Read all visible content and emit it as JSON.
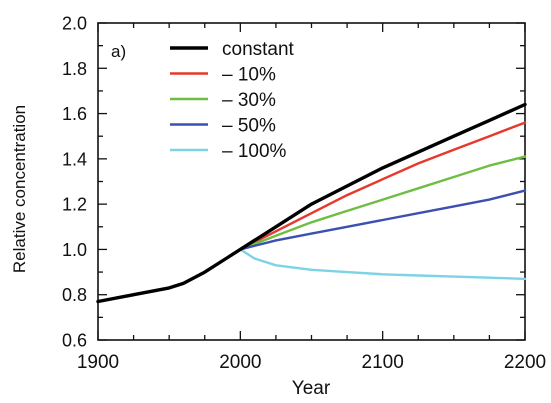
{
  "chart_data": {
    "type": "line",
    "panel_label": "a)",
    "title": "",
    "xlabel": "Year",
    "ylabel": "Relative concentration",
    "xlim": [
      1900,
      2200
    ],
    "ylim": [
      0.6,
      2.0
    ],
    "x_ticks": [
      1900,
      2000,
      2100,
      2200
    ],
    "y_ticks": [
      "0.6",
      "0.8",
      "1.0",
      "1.2",
      "1.4",
      "1.6",
      "1.8",
      "2.0"
    ],
    "grid": false,
    "legend_position": "top-left",
    "series": [
      {
        "name": "constant",
        "color": "#000000",
        "x": [
          1900,
          1925,
          1950,
          1960,
          1975,
          1990,
          2000,
          2025,
          2050,
          2075,
          2100,
          2125,
          2150,
          2175,
          2200
        ],
        "y": [
          0.77,
          0.8,
          0.83,
          0.85,
          0.9,
          0.96,
          1.0,
          1.1,
          1.2,
          1.28,
          1.36,
          1.43,
          1.5,
          1.57,
          1.64
        ]
      },
      {
        "name": "– 10%",
        "color": "#e8382b",
        "x": [
          2000,
          2025,
          2050,
          2075,
          2100,
          2125,
          2150,
          2175,
          2200
        ],
        "y": [
          1.0,
          1.08,
          1.16,
          1.24,
          1.31,
          1.38,
          1.44,
          1.5,
          1.56
        ]
      },
      {
        "name": "– 30%",
        "color": "#6fbe44",
        "x": [
          2000,
          2025,
          2050,
          2075,
          2100,
          2125,
          2150,
          2175,
          2200
        ],
        "y": [
          1.0,
          1.06,
          1.12,
          1.17,
          1.22,
          1.27,
          1.32,
          1.37,
          1.41
        ]
      },
      {
        "name": "– 50%",
        "color": "#3b50b0",
        "x": [
          2000,
          2025,
          2050,
          2075,
          2100,
          2125,
          2150,
          2175,
          2200
        ],
        "y": [
          1.0,
          1.04,
          1.07,
          1.1,
          1.13,
          1.16,
          1.19,
          1.22,
          1.26
        ]
      },
      {
        "name": "– 100%",
        "color": "#7dd3e6",
        "x": [
          2000,
          2010,
          2025,
          2050,
          2075,
          2100,
          2125,
          2150,
          2175,
          2200
        ],
        "y": [
          1.0,
          0.96,
          0.93,
          0.91,
          0.9,
          0.89,
          0.885,
          0.88,
          0.875,
          0.87
        ]
      }
    ]
  }
}
